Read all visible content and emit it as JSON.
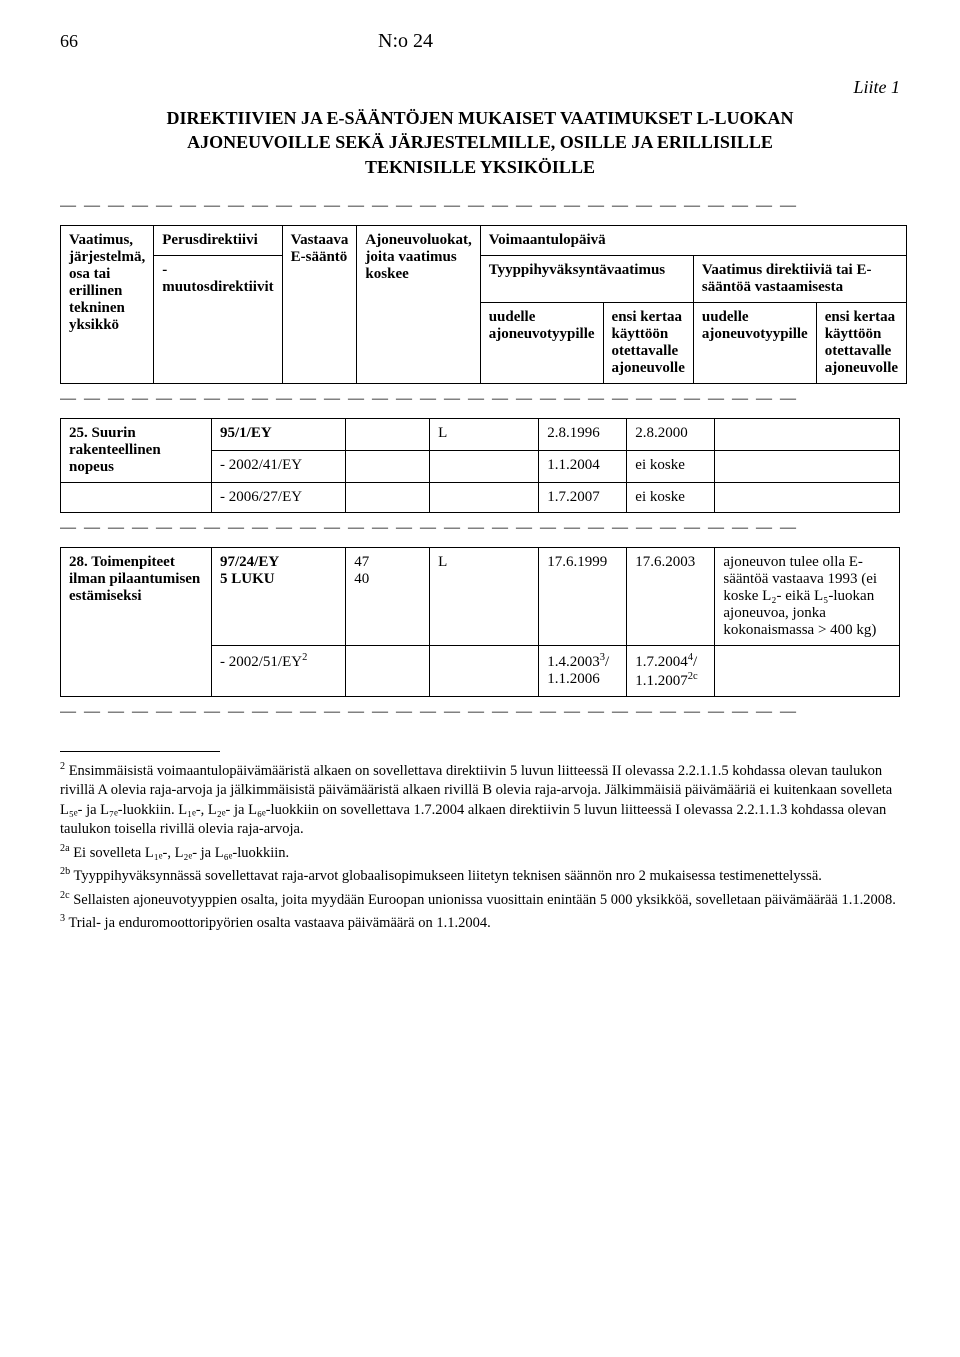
{
  "page_number": "66",
  "doc_no": "N:o 24",
  "liite": "Liite 1",
  "main_title_line1": "DIREKTIIVIEN JA E-SÄÄNTÖJEN MUKAISET VAATIMUKSET L-LUOKAN",
  "main_title_line2": "AJONEUVOILLE SEKÄ JÄRJESTELMILLE, OSILLE JA ERILLISILLE",
  "main_title_line3": "TEKNISILLE YKSIKÖILLE",
  "dash_row": "— — — — — — — — — — — — — — — — — — — — — — — — — — — — — — —",
  "header_table": {
    "r1c1": "Vaatimus, järjestelmä, osa tai erillinen tekninen yksikkö",
    "r1c2": "Perusdirektiivi",
    "r1c3": "Vastaava E-sääntö",
    "r1c4": "Ajoneuvoluokat, joita vaatimus koskee",
    "voimaantulo": "Voimaantulopäivä",
    "r2_tyyppi": "Tyyppihyväksyntävaatimus",
    "r2_vaatimus": "Vaatimus direktiiviä tai E-sääntöä vastaamisesta",
    "r3_muutos": "- muutosdirektiivit",
    "r3_uudelle1": "uudelle ajoneuvotyypille",
    "r3_ensi1": "ensi kertaa käyttöön otettavalle ajoneuvolle",
    "r3_uudelle2": "uudelle ajoneuvotyypille",
    "r3_ensi2": "ensi kertaa käyttöön otettavalle ajoneuvolle"
  },
  "table25": {
    "row_label": "25. Suurin rakenteellinen nopeus",
    "rows": [
      {
        "dir": "95/1/EY",
        "c3": "",
        "c4": "L",
        "d1": "2.8.1996",
        "d2": "2.8.2000",
        "extra": ""
      },
      {
        "dir": "- 2002/41/EY",
        "c3": "",
        "c4": "",
        "d1": "1.1.2004",
        "d2": "ei koske",
        "extra": ""
      },
      {
        "dir": "- 2006/27/EY",
        "c3": "",
        "c4": "",
        "d1": "1.7.2007",
        "d2": "ei koske",
        "extra": ""
      }
    ]
  },
  "table28": {
    "row_label": "28. Toimenpiteet ilman pilaantumisen estämiseksi",
    "rows": [
      {
        "dir_top": "97/24/EY",
        "dir_bot": "5 LUKU",
        "c3_top": "47",
        "c3_bot": "40",
        "c4": "L",
        "d1": "17.6.1999",
        "d2": "17.6.2003",
        "extra": "ajoneuvon tulee olla E-sääntöä vastaava 1993 (ei koske L₂- eikä L₅-luokan ajoneuvoa, jonka kokonaismassa > 400 kg)"
      },
      {
        "dir": "- 2002/51/EY",
        "dir_sup": "2",
        "c3": "",
        "c4": "",
        "d1_a": "1.4.2003",
        "d1_sup": "3",
        "d1_b": "/\n1.1.2006",
        "d2_a": "1.7.2004",
        "d2_sup": "4",
        "d2_b": "/\n1.1.2007",
        "d2_sup2": "2c",
        "extra": ""
      }
    ]
  },
  "footnotes": {
    "f2": "Ensimmäisistä voimaantulopäivämääristä alkaen on sovellettava direktiivin 5 luvun liitteessä II olevassa 2.2.1.1.5 kohdassa olevan taulukon rivillä A olevia raja-arvoja ja jälkimmäisistä päivämääristä alkaen rivillä B olevia raja-arvoja. Jälkimmäisiä päivämääriä ei kuitenkaan sovelleta L₅ₑ- ja L₇ₑ-luokkiin. L₁ₑ-, L₂ₑ- ja L₆ₑ-luokkiin on sovellettava 1.7.2004 alkaen direktiivin 5 luvun liitteessä I olevassa 2.2.1.1.3 kohdassa olevan taulukon toisella rivillä olevia raja-arvoja.",
    "f2a": "Ei sovelleta L₁ₑ-, L₂ₑ- ja L₆ₑ-luokkiin.",
    "f2b": "Tyyppihyväksynnässä sovellettavat raja-arvot globaalisopimukseen liitetyn teknisen säännön nro 2 mukaisessa testimenettelyssä.",
    "f2c": "Sellaisten ajoneuvotyyppien osalta, joita myydään Euroopan unionissa vuosittain enintään 5 000 yksikköä, sovelletaan päivämäärää 1.1.2008.",
    "f3": "Trial- ja enduromoottoripyörien osalta vastaava päivämäärä on 1.1.2004."
  }
}
